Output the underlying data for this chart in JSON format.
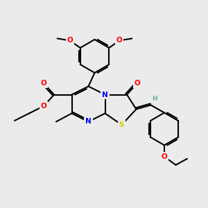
{
  "background_color": "#ebebeb",
  "bond_color": "#000000",
  "figsize": [
    3.0,
    3.0
  ],
  "dpi": 100,
  "atom_colors": {
    "O": "#ff0000",
    "N": "#0000ff",
    "S": "#cccc00",
    "H": "#5fa8a8",
    "C": "#000000"
  },
  "xlim": [
    0,
    10
  ],
  "ylim": [
    0,
    10
  ]
}
